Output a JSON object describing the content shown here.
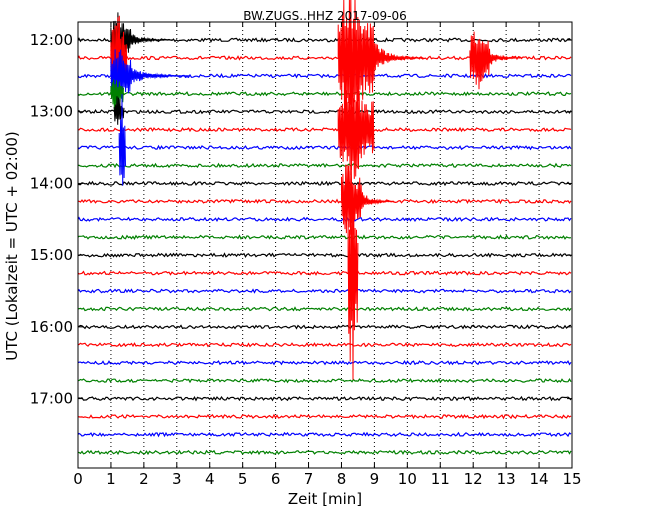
{
  "chart_data": {
    "type": "line",
    "title": "BW.ZUGS..HHZ 2017-09-06",
    "xlabel": "Zeit  [min]",
    "ylabel": "UTC (Lokalzeit = UTC + 02:00)",
    "xlim": [
      0,
      15
    ],
    "x_ticks": [
      "0",
      "1",
      "2",
      "3",
      "4",
      "5",
      "6",
      "7",
      "8",
      "9",
      "10",
      "11",
      "12",
      "13",
      "14",
      "15"
    ],
    "y_ticks": [
      {
        "label": "12:00",
        "trace": 0
      },
      {
        "label": "13:00",
        "trace": 4
      },
      {
        "label": "14:00",
        "trace": 8
      },
      {
        "label": "15:00",
        "trace": 12
      },
      {
        "label": "16:00",
        "trace": 16
      },
      {
        "label": "17:00",
        "trace": 20
      }
    ],
    "trace_interval_minutes": 15,
    "trace_count": 24,
    "color_cycle": [
      "#000000",
      "#ff0000",
      "#0000ff",
      "#008000"
    ],
    "grid": "vertical dotted at each minute",
    "events": [
      {
        "trace": 0,
        "start_min": 1.0,
        "end_min": 1.6,
        "amplitude_traces": 1.6,
        "coda_min": 1.3,
        "note": "first shaking (trace 12:00)"
      },
      {
        "trace": 1,
        "start_min": 1.0,
        "end_min": 1.5,
        "amplitude_traces": 3.0
      },
      {
        "trace": 2,
        "start_min": 1.0,
        "end_min": 1.6,
        "amplitude_traces": 2.2,
        "coda_min": 1.8
      },
      {
        "trace": 3,
        "start_min": 1.0,
        "end_min": 1.4,
        "amplitude_traces": 1.0
      },
      {
        "trace": 4,
        "start_min": 1.1,
        "end_min": 1.4,
        "amplitude_traces": 0.9
      },
      {
        "trace": 6,
        "start_min": 1.25,
        "end_min": 1.45,
        "amplitude_traces": 3.5
      },
      {
        "trace": 1,
        "start_min": 7.9,
        "end_min": 9.0,
        "amplitude_traces": 4.0,
        "coda_min": 1.5
      },
      {
        "trace": 5,
        "start_min": 7.9,
        "end_min": 9.0,
        "amplitude_traces": 3.0
      },
      {
        "trace": 9,
        "start_min": 8.0,
        "end_min": 8.6,
        "amplitude_traces": 2.5,
        "coda_min": 1.0
      },
      {
        "trace": 13,
        "start_min": 8.2,
        "end_min": 8.5,
        "amplitude_traces": 6.5
      },
      {
        "trace": 1,
        "start_min": 11.9,
        "end_min": 12.5,
        "amplitude_traces": 1.9,
        "coda_min": 1.0
      }
    ]
  }
}
